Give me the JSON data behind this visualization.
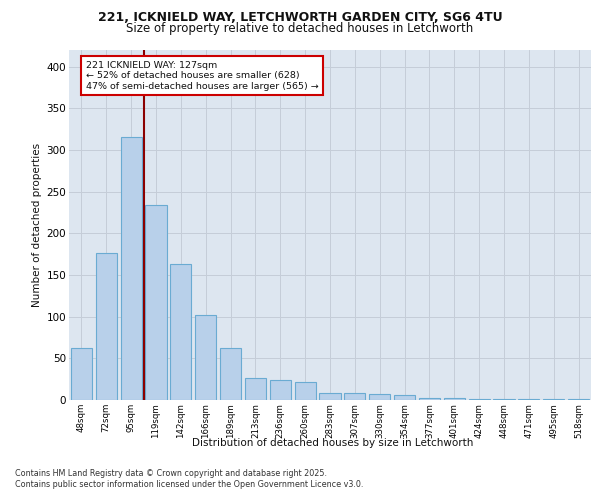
{
  "title_line1": "221, ICKNIELD WAY, LETCHWORTH GARDEN CITY, SG6 4TU",
  "title_line2": "Size of property relative to detached houses in Letchworth",
  "xlabel": "Distribution of detached houses by size in Letchworth",
  "ylabel": "Number of detached properties",
  "categories": [
    "48sqm",
    "72sqm",
    "95sqm",
    "119sqm",
    "142sqm",
    "166sqm",
    "189sqm",
    "213sqm",
    "236sqm",
    "260sqm",
    "283sqm",
    "307sqm",
    "330sqm",
    "354sqm",
    "377sqm",
    "401sqm",
    "424sqm",
    "448sqm",
    "471sqm",
    "495sqm",
    "518sqm"
  ],
  "values": [
    63,
    176,
    316,
    234,
    163,
    102,
    62,
    27,
    24,
    22,
    9,
    9,
    7,
    6,
    3,
    2,
    1,
    1,
    1,
    1,
    1
  ],
  "bar_color": "#b8d0ea",
  "bar_edge_color": "#6aabd2",
  "annotation_text": "221 ICKNIELD WAY: 127sqm\n← 52% of detached houses are smaller (628)\n47% of semi-detached houses are larger (565) →",
  "annotation_box_color": "#ffffff",
  "annotation_box_edge": "#cc0000",
  "vline_color": "#8b0000",
  "vline_x": 2.5,
  "background_color": "#ffffff",
  "grid_color": "#c5cdd8",
  "plot_bg_color": "#dde6f0",
  "footer_line1": "Contains HM Land Registry data © Crown copyright and database right 2025.",
  "footer_line2": "Contains public sector information licensed under the Open Government Licence v3.0.",
  "ylim": [
    0,
    420
  ],
  "yticks": [
    0,
    50,
    100,
    150,
    200,
    250,
    300,
    350,
    400
  ]
}
